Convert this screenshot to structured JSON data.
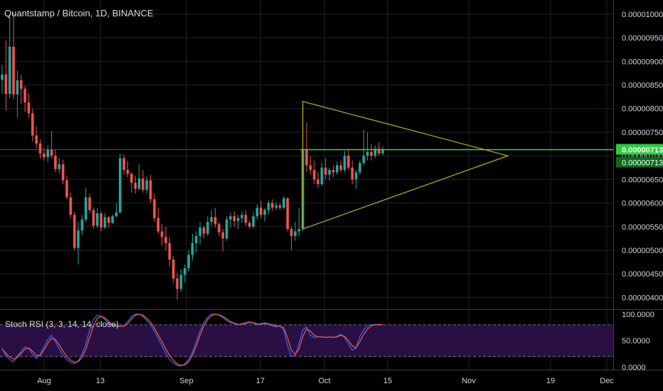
{
  "header": {
    "title": "Quantstamp / Bitcoin, 1D, BINANCE"
  },
  "indicator": {
    "label": "Stoch RSI (3, 3, 14, 14, close)"
  },
  "colors": {
    "background": "#000000",
    "grid": "#1e222d",
    "up": "#26a69a",
    "down": "#ef5350",
    "horizontal_line": "#39d353",
    "triangle": "#b5a51f",
    "stoch_k": "#2962ff",
    "stoch_d": "#f0552f",
    "stoch_band_fill": "#2a0f45",
    "text": "#d1d4dc",
    "price_badge": "#2ecc40"
  },
  "chart_data": [
    {
      "type": "candlestick",
      "title": "Quantstamp / Bitcoin, 1D, BINANCE",
      "y_ticks": [
        "0.00001000",
        "0.00000950",
        "0.00000900",
        "0.00000850",
        "0.00000800",
        "0.00000750",
        "0.00000700",
        "0.00000650",
        "0.00000600",
        "0.00000550",
        "0.00000500",
        "0.00000450",
        "0.00000400"
      ],
      "ylim": [
        3.75e-06,
        1.03e-05
      ],
      "x_ticks": [
        "Aug",
        "13",
        "Sep",
        "17",
        "Oct",
        "15",
        "Nov",
        "19",
        "Dec"
      ],
      "current_price": [
        "0.00000713",
        "0.00000713"
      ],
      "candles": [
        [
          8.61e-06,
          8.92e-06,
          8.32e-06,
          8.72e-06
        ],
        [
          8.72e-06,
          9.44e-06,
          7.95e-06,
          8.31e-06
        ],
        [
          8.31e-06,
          9.98e-06,
          8.22e-06,
          9.31e-06
        ],
        [
          9.31e-06,
          1.003e-05,
          8.2e-06,
          8.3e-06
        ],
        [
          8.3e-06,
          8.8e-06,
          7.82e-06,
          8.6e-06
        ],
        [
          8.6e-06,
          8.72e-06,
          8.1e-06,
          8.42e-06
        ],
        [
          8.42e-06,
          8.48e-06,
          7.93e-06,
          8.13e-06
        ],
        [
          8.13e-06,
          8.32e-06,
          7.8e-06,
          7.9e-06
        ],
        [
          7.9e-06,
          8e-06,
          7.3e-06,
          7.43e-06
        ],
        [
          7.43e-06,
          7.62e-06,
          7.16e-06,
          7.26e-06
        ],
        [
          7.26e-06,
          7.35e-06,
          6.94e-06,
          7.05e-06
        ],
        [
          7.05e-06,
          7.16e-06,
          6.9e-06,
          6.97e-06
        ],
        [
          6.97e-06,
          7.22e-06,
          6.87e-06,
          7.13e-06
        ],
        [
          7.13e-06,
          7.52e-06,
          6.95e-06,
          7e-06
        ],
        [
          7e-06,
          7.13e-06,
          6.65e-06,
          6.72e-06
        ],
        [
          6.72e-06,
          6.96e-06,
          6.62e-06,
          6.82e-06
        ],
        [
          6.82e-06,
          6.92e-06,
          6.4e-06,
          6.48e-06
        ],
        [
          6.48e-06,
          6.57e-06,
          6.08e-06,
          6.12e-06
        ],
        [
          6.12e-06,
          6.22e-06,
          5.68e-06,
          5.75e-06
        ],
        [
          5.75e-06,
          5.82e-06,
          5e-06,
          5.05e-06
        ],
        [
          5.05e-06,
          5.6e-06,
          4.7e-06,
          5.42e-06
        ],
        [
          5.42e-06,
          5.75e-06,
          5.32e-06,
          5.65e-06
        ],
        [
          5.65e-06,
          6.32e-06,
          5.6e-06,
          6.12e-06
        ],
        [
          6.12e-06,
          6.2e-06,
          5.78e-06,
          5.85e-06
        ],
        [
          5.85e-06,
          5.9e-06,
          5.45e-06,
          5.52e-06
        ],
        [
          5.52e-06,
          5.9e-06,
          5.48e-06,
          5.78e-06
        ],
        [
          5.78e-06,
          5.82e-06,
          5.4e-06,
          5.48e-06
        ],
        [
          5.48e-06,
          5.78e-06,
          5.45e-06,
          5.7e-06
        ],
        [
          5.7e-06,
          5.73e-06,
          5.48e-06,
          5.58e-06
        ],
        [
          5.58e-06,
          5.77e-06,
          5.55e-06,
          5.72e-06
        ],
        [
          5.72e-06,
          6e-06,
          5.7e-06,
          5.8e-06
        ],
        [
          5.8e-06,
          7.05e-06,
          5.78e-06,
          6.95e-06
        ],
        [
          6.95e-06,
          7.02e-06,
          6.6e-06,
          6.7e-06
        ],
        [
          6.7e-06,
          6.88e-06,
          6.55e-06,
          6.62e-06
        ],
        [
          6.62e-06,
          6.65e-06,
          6.22e-06,
          6.43e-06
        ],
        [
          6.43e-06,
          6.57e-06,
          6.2e-06,
          6.3e-06
        ],
        [
          6.3e-06,
          6.82e-06,
          6.28e-06,
          6.52e-06
        ],
        [
          6.52e-06,
          6.7e-06,
          6.22e-06,
          6.28e-06
        ],
        [
          6.28e-06,
          6.56e-06,
          6.2e-06,
          6.48e-06
        ],
        [
          6.48e-06,
          6.6e-06,
          6e-06,
          6.08e-06
        ],
        [
          6.08e-06,
          6.2e-06,
          5.6e-06,
          5.68e-06
        ],
        [
          5.68e-06,
          5.9e-06,
          5.35e-06,
          5.4e-06
        ],
        [
          5.4e-06,
          5.55e-06,
          5.1e-06,
          5.28e-06
        ],
        [
          5.28e-06,
          5.5e-06,
          5e-06,
          5.15e-06
        ],
        [
          5.15e-06,
          5.28e-06,
          4.65e-06,
          4.8e-06
        ],
        [
          4.8e-06,
          4.88e-06,
          4.3e-06,
          4.4e-06
        ],
        [
          4.4e-06,
          4.52e-06,
          3.95e-06,
          4.18e-06
        ],
        [
          4.18e-06,
          4.6e-06,
          4.12e-06,
          4.48e-06
        ],
        [
          4.48e-06,
          4.7e-06,
          4.32e-06,
          4.62e-06
        ],
        [
          4.62e-06,
          5e-06,
          4.55e-06,
          4.9e-06
        ],
        [
          4.9e-06,
          5.35e-06,
          4.78e-06,
          5.15e-06
        ],
        [
          5.15e-06,
          5.4e-06,
          4.95e-06,
          5.3e-06
        ],
        [
          5.3e-06,
          5.6e-06,
          5.12e-06,
          5.48e-06
        ],
        [
          5.48e-06,
          5.52e-06,
          5.25e-06,
          5.35e-06
        ],
        [
          5.35e-06,
          5.72e-06,
          5.3e-06,
          5.6e-06
        ],
        [
          5.6e-06,
          5.85e-06,
          5.52e-06,
          5.7e-06
        ],
        [
          5.7e-06,
          5.9e-06,
          5.48e-06,
          5.55e-06
        ],
        [
          5.55e-06,
          5.6e-06,
          5.3e-06,
          5.38e-06
        ],
        [
          5.38e-06,
          5.45e-06,
          4.98e-06,
          5.25e-06
        ],
        [
          5.25e-06,
          5.72e-06,
          5.2e-06,
          5.65e-06
        ],
        [
          5.65e-06,
          5.8e-06,
          5.48e-06,
          5.72e-06
        ],
        [
          5.72e-06,
          5.82e-06,
          5.5e-06,
          5.62e-06
        ],
        [
          5.62e-06,
          5.75e-06,
          5.45e-06,
          5.68e-06
        ],
        [
          5.68e-06,
          5.82e-06,
          5.58e-06,
          5.75e-06
        ],
        [
          5.75e-06,
          5.85e-06,
          5.52e-06,
          5.58e-06
        ],
        [
          5.58e-06,
          5.62e-06,
          5.45e-06,
          5.5e-06
        ],
        [
          5.5e-06,
          5.8e-06,
          5.46e-06,
          5.72e-06
        ],
        [
          5.72e-06,
          5.98e-06,
          5.65e-06,
          5.9e-06
        ],
        [
          5.9e-06,
          6.05e-06,
          5.68e-06,
          5.75e-06
        ],
        [
          5.75e-06,
          5.9e-06,
          5.6e-06,
          5.85e-06
        ],
        [
          5.85e-06,
          6.05e-06,
          5.76e-06,
          6e-06
        ],
        [
          6e-06,
          6.08e-06,
          5.83e-06,
          5.9e-06
        ],
        [
          5.9e-06,
          6.02e-06,
          5.85e-06,
          5.95e-06
        ],
        [
          5.95e-06,
          6e-06,
          5.85e-06,
          5.9e-06
        ],
        [
          5.9e-06,
          6.15e-06,
          5.86e-06,
          6.1e-06
        ],
        [
          6.1e-06,
          6.12e-06,
          5.4e-06,
          5.45e-06
        ],
        [
          5.45e-06,
          5.5e-06,
          5e-06,
          5.3e-06
        ],
        [
          5.3e-06,
          5.6e-06,
          5.2e-06,
          5.4e-06
        ],
        [
          5.4e-06,
          5.9e-06,
          5.3e-06,
          5.45e-06
        ],
        [
          5.45e-06,
          7.15e-06,
          5.4e-06,
          7.12e-06
        ],
        [
          7.12e-06,
          7.7e-06,
          6.65e-06,
          6.8e-06
        ],
        [
          6.8e-06,
          7e-06,
          6.6e-06,
          6.7e-06
        ],
        [
          6.7e-06,
          6.9e-06,
          6.4e-06,
          6.5e-06
        ],
        [
          6.5e-06,
          6.65e-06,
          6.32e-06,
          6.4e-06
        ],
        [
          6.4e-06,
          6.85e-06,
          6.36e-06,
          6.75e-06
        ],
        [
          6.75e-06,
          6.95e-06,
          6.5e-06,
          6.6e-06
        ],
        [
          6.6e-06,
          6.75e-06,
          6.48e-06,
          6.7e-06
        ],
        [
          6.7e-06,
          6.8e-06,
          6.55e-06,
          6.65e-06
        ],
        [
          6.65e-06,
          6.88e-06,
          6.6e-06,
          6.8e-06
        ],
        [
          6.8e-06,
          6.9e-06,
          6.65e-06,
          6.7e-06
        ],
        [
          6.7e-06,
          7.1e-06,
          6.65e-06,
          7e-06
        ],
        [
          7e-06,
          7.12e-06,
          6.7e-06,
          6.75e-06
        ],
        [
          6.75e-06,
          6.9e-06,
          6.4e-06,
          6.5e-06
        ],
        [
          6.5e-06,
          6.7e-06,
          6.3e-06,
          6.65e-06
        ],
        [
          6.65e-06,
          6.9e-06,
          6.6e-06,
          6.85e-06
        ],
        [
          6.85e-06,
          7.55e-06,
          6.8e-06,
          7e-06
        ],
        [
          7e-06,
          7.5e-06,
          6.9e-06,
          7.08e-06
        ],
        [
          7.08e-06,
          7.25e-06,
          6.9e-06,
          7e-06
        ],
        [
          7e-06,
          7.22e-06,
          6.95e-06,
          7.15e-06
        ],
        [
          7.15e-06,
          7.28e-06,
          7e-06,
          7.05e-06
        ],
        [
          7.05e-06,
          7.2e-06,
          7e-06,
          7.13e-06
        ]
      ]
    },
    {
      "type": "line",
      "title": "Stoch RSI (3, 3, 14, 14, close)",
      "y_ticks": [
        "100.0000",
        "50.0000",
        "0.0000"
      ],
      "ylim": [
        -5,
        108
      ],
      "bands": [
        80,
        20
      ],
      "series": [
        {
          "values": [
            35,
            22,
            14,
            10,
            20,
            30,
            38,
            35,
            24,
            16,
            24,
            38,
            52,
            60,
            48,
            34,
            22,
            14,
            9,
            6,
            12,
            24,
            44,
            70,
            90,
            98,
            96,
            90,
            82,
            78,
            77,
            77,
            78,
            86,
            96,
            100,
            100,
            96,
            88,
            80,
            68,
            54,
            40,
            26,
            14,
            8,
            3,
            2,
            6,
            14,
            28,
            48,
            68,
            84,
            94,
            100,
            100,
            98,
            94,
            88,
            84,
            82,
            80,
            82,
            84,
            86,
            83,
            80,
            82,
            84,
            80,
            78,
            76,
            78,
            70,
            40,
            20,
            22,
            44,
            70,
            76,
            60,
            56,
            57,
            57,
            56,
            57,
            56,
            58,
            62,
            56,
            44,
            32,
            36,
            58,
            70,
            78,
            80,
            80,
            81,
            80
          ]
        },
        {
          "values": [
            34,
            26,
            19,
            15,
            18,
            26,
            34,
            36,
            30,
            22,
            22,
            32,
            45,
            54,
            52,
            42,
            30,
            20,
            13,
            9,
            10,
            18,
            34,
            56,
            78,
            92,
            96,
            93,
            86,
            80,
            78,
            77,
            77,
            82,
            91,
            98,
            100,
            98,
            92,
            85,
            74,
            61,
            48,
            34,
            22,
            13,
            6,
            3,
            4,
            10,
            22,
            40,
            60,
            78,
            90,
            97,
            100,
            99,
            96,
            91,
            86,
            83,
            81,
            81,
            82,
            84,
            84,
            82,
            81,
            82,
            82,
            80,
            78,
            77,
            74,
            55,
            32,
            24,
            34,
            58,
            72,
            68,
            60,
            57,
            57,
            56,
            57,
            56,
            57,
            60,
            58,
            50,
            40,
            36,
            48,
            62,
            72,
            78,
            80,
            80,
            80
          ]
        }
      ]
    }
  ]
}
